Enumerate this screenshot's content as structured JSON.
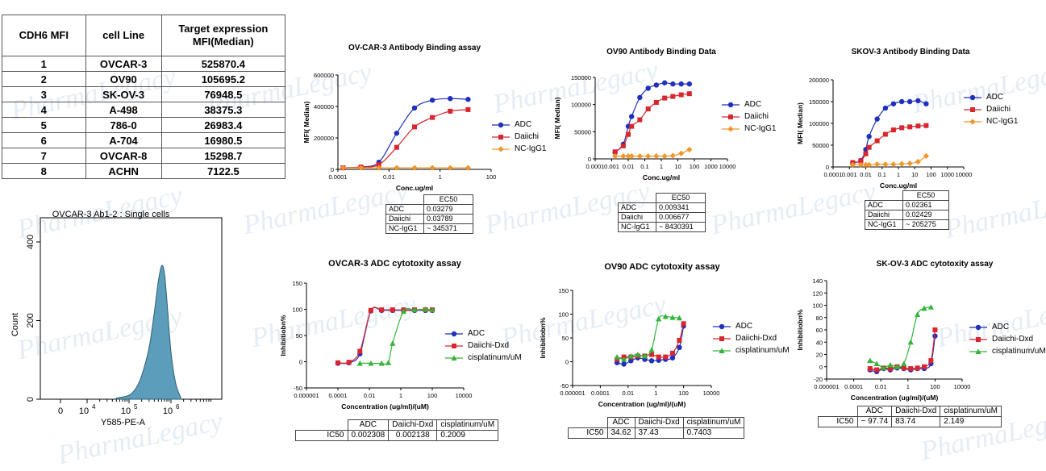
{
  "mfi_table": {
    "headers": [
      "CDH6 MFI",
      "cell Line",
      "Target expression MFI(Median)"
    ],
    "rows": [
      [
        "1",
        "OVCAR-3",
        "525870.4"
      ],
      [
        "2",
        "OV90",
        "105695.2"
      ],
      [
        "3",
        "SK-OV-3",
        "76948.5"
      ],
      [
        "4",
        "A-498",
        "38375.3"
      ],
      [
        "5",
        "786-0",
        "26983.4"
      ],
      [
        "6",
        "A-704",
        "16980.5"
      ],
      [
        "7",
        "OVCAR-8",
        "15298.7"
      ],
      [
        "8",
        "ACHN",
        "7122.5"
      ]
    ]
  },
  "watermark": "PharmaLegacy",
  "colors": {
    "adc": "#1f2fbf",
    "daiichi": "#d7262d",
    "nc": "#f0962a",
    "cisplatin": "#33b53a",
    "hist_fill": "#5b9dbb"
  },
  "ec50_tables": [
    {
      "header": "EC50",
      "rows": [
        [
          "ADC",
          "0.03279"
        ],
        [
          "Daiichi",
          "0.03789"
        ],
        [
          "NC-IgG1",
          "~ 345371"
        ]
      ]
    },
    {
      "header": "EC50",
      "rows": [
        [
          "ADC",
          "0.009341"
        ],
        [
          "Daiichi",
          "0.006677"
        ],
        [
          "NC-IgG1",
          "~ 8430391"
        ]
      ]
    },
    {
      "header": "EC50",
      "rows": [
        [
          "ADC",
          "0.02361"
        ],
        [
          "Daiichi",
          "0.02429"
        ],
        [
          "NC-IgG1",
          "~ 205275"
        ]
      ]
    }
  ],
  "ic50_tables": [
    {
      "headers": [
        "ADC",
        "Daiichi-Dxd",
        "cisplatinum/uM"
      ],
      "label": "IC50",
      "values": [
        "0.002308",
        "0.002138",
        "0.2009"
      ]
    },
    {
      "headers": [
        "ADC",
        "Daiichi-Dxd",
        "cisplatinum/uM"
      ],
      "label": "IC50",
      "values": [
        "34.62",
        "37.43",
        "0.7403"
      ]
    },
    {
      "headers": [
        "ADC",
        "Daiichi-Dxd",
        "cisplatinum/uM"
      ],
      "label": "IC50",
      "values": [
        "~ 97.74",
        "83.74",
        "2.149"
      ]
    }
  ],
  "chart_data": [
    {
      "type": "line",
      "title": "OV-CAR-3 Antibody Binding assay",
      "xlabel": "Conc.ug/ml",
      "ylabel": "MFI( Median)",
      "xscale": "log",
      "xlim": [
        0.0001,
        100
      ],
      "ylim": [
        0,
        600000
      ],
      "xticks": [
        "0.0001",
        "0.01",
        "1",
        "100"
      ],
      "yticks": [
        "0",
        "200000",
        "400000",
        "600000"
      ],
      "legend": "right",
      "series": [
        {
          "name": "ADC",
          "x": [
            0.00016,
            0.0008,
            0.004,
            0.02,
            0.1,
            0.5,
            2.5,
            12.5
          ],
          "y": [
            10000,
            15000,
            45000,
            230000,
            390000,
            440000,
            450000,
            445000
          ]
        },
        {
          "name": "Daiichi",
          "x": [
            0.00016,
            0.0008,
            0.004,
            0.02,
            0.1,
            0.5,
            2.5,
            12.5
          ],
          "y": [
            10000,
            15000,
            30000,
            140000,
            270000,
            330000,
            370000,
            380000
          ]
        },
        {
          "name": "NC-IgG1",
          "x": [
            0.00016,
            0.0008,
            0.004,
            0.02,
            0.1,
            0.5,
            2.5,
            12.5
          ],
          "y": [
            10000,
            10000,
            10000,
            10000,
            10000,
            10000,
            10000,
            10000
          ]
        }
      ]
    },
    {
      "type": "line",
      "title": "OV90 Antibody Binding Data",
      "xlabel": "Conc.ug/ml",
      "ylabel": "MFI( Median)",
      "xscale": "log",
      "xlim": [
        0.0001,
        10000
      ],
      "ylim": [
        0,
        150000
      ],
      "xticks": [
        "0.0001",
        "0.001",
        "0.01",
        "0.1",
        "1",
        "10",
        "100",
        "1000",
        "10000"
      ],
      "yticks": [
        "0",
        "50000",
        "100000",
        "150000"
      ],
      "legend": "right",
      "series": [
        {
          "name": "ADC",
          "x": [
            0.0016,
            0.005,
            0.01,
            0.016,
            0.05,
            0.16,
            0.5,
            1.6,
            5,
            16,
            50
          ],
          "y": [
            12000,
            27000,
            60000,
            78000,
            113000,
            130000,
            136000,
            140000,
            138000,
            138000,
            138000
          ]
        },
        {
          "name": "Daiichi",
          "x": [
            0.0016,
            0.005,
            0.01,
            0.016,
            0.05,
            0.16,
            0.5,
            1.6,
            5,
            16,
            50
          ],
          "y": [
            13000,
            24000,
            45000,
            60000,
            72000,
            92000,
            104000,
            112000,
            115000,
            118000,
            120000
          ]
        },
        {
          "name": "NC-IgG1",
          "x": [
            0.0016,
            0.005,
            0.01,
            0.016,
            0.05,
            0.16,
            0.5,
            1.6,
            5,
            16,
            50
          ],
          "y": [
            5000,
            5000,
            5000,
            5000,
            5000,
            5000,
            5000,
            5000,
            6000,
            10000,
            17000
          ]
        }
      ]
    },
    {
      "type": "line",
      "title": "SKOV-3 Antibody Binding Data",
      "xlabel": "Conc.ug/ml",
      "ylabel": "MFI( Median)",
      "xscale": "log",
      "xlim": [
        0.0001,
        10000
      ],
      "ylim": [
        0,
        200000
      ],
      "xticks": [
        "0.0001",
        "0.001",
        "0.01",
        "0.1",
        "1",
        "10",
        "100",
        "1000",
        "10000"
      ],
      "yticks": [
        "0",
        "50000",
        "100000",
        "150000",
        "200000"
      ],
      "legend": "right",
      "series": [
        {
          "name": "ADC",
          "x": [
            0.0016,
            0.005,
            0.01,
            0.016,
            0.05,
            0.16,
            0.5,
            1.6,
            5,
            16,
            50
          ],
          "y": [
            10000,
            15000,
            40000,
            70000,
            110000,
            135000,
            145000,
            150000,
            150000,
            152000,
            145000
          ]
        },
        {
          "name": "Daiichi",
          "x": [
            0.0016,
            0.005,
            0.01,
            0.016,
            0.05,
            0.16,
            0.5,
            1.6,
            5,
            16,
            50
          ],
          "y": [
            10000,
            14000,
            30000,
            45000,
            60000,
            75000,
            85000,
            90000,
            92000,
            94000,
            95000
          ]
        },
        {
          "name": "NC-IgG1",
          "x": [
            0.0016,
            0.005,
            0.01,
            0.016,
            0.05,
            0.16,
            0.5,
            1.6,
            5,
            16,
            50
          ],
          "y": [
            5000,
            5000,
            5000,
            5000,
            6000,
            6000,
            6000,
            7000,
            8000,
            12000,
            25000
          ]
        }
      ]
    },
    {
      "type": "area",
      "title": "OVCAR-3 Ab1-2 : Single cells",
      "xlabel": "Y585-PE-A",
      "ylabel": "Count",
      "xscale": "biexponential",
      "xticks": [
        "0",
        "10^4",
        "10^5",
        "10^6"
      ],
      "yticks": [
        "0",
        "200",
        "400"
      ],
      "ylim": [
        0,
        400
      ],
      "series": [
        {
          "name": "",
          "x": [
            50000,
            100000,
            150000,
            200000,
            300000,
            400000,
            500000,
            600000,
            700000,
            800000,
            1000000,
            1300000,
            1700000
          ],
          "y": [
            3,
            10,
            30,
            60,
            130,
            220,
            300,
            340,
            320,
            250,
            120,
            40,
            5
          ]
        }
      ]
    },
    {
      "type": "line",
      "title": "OVCAR-3 ADC cytotoxity assay",
      "xlabel": "Concentration (ug/ml)/(uM)",
      "ylabel": "Inhibitiobn%",
      "xscale": "log",
      "xlim": [
        1e-06,
        10000
      ],
      "ylim": [
        -50,
        150
      ],
      "xticks": [
        "0.000001",
        "0.0001",
        "0.01",
        "1",
        "100",
        "10000"
      ],
      "yticks": [
        "-50",
        "0",
        "50",
        "100",
        "150"
      ],
      "legend": "right",
      "series": [
        {
          "name": "ADC",
          "x": [
            0.0001,
            0.0005,
            0.0025,
            0.0125,
            0.06,
            0.3,
            1.5,
            7.5,
            37,
            100
          ],
          "y": [
            -3,
            -2,
            15,
            97,
            98,
            98,
            98,
            98,
            98,
            98
          ]
        },
        {
          "name": "Daiichi-Dxd",
          "x": [
            0.0001,
            0.0005,
            0.0025,
            0.0125,
            0.06,
            0.3,
            1.5,
            7.5,
            37,
            100
          ],
          "y": [
            -2,
            -1,
            20,
            98,
            99,
            99,
            99,
            99,
            99,
            99
          ]
        },
        {
          "name": "cisplatinum/uM",
          "x": [
            0.0025,
            0.0125,
            0.06,
            0.16,
            0.3,
            1.5,
            7.5,
            37,
            100
          ],
          "y": [
            -3,
            -3,
            -3,
            -2,
            35,
            96,
            99,
            100,
            99
          ]
        }
      ]
    },
    {
      "type": "line",
      "title": "OV90 ADC cytotoxity assay",
      "xlabel": "Concentration (ug/ml)/(uM)",
      "ylabel": "Inhibitiobn%",
      "xscale": "log",
      "xlim": [
        1e-06,
        10000
      ],
      "ylim": [
        -50,
        150
      ],
      "xticks": [
        "0.000001",
        "0.0001",
        "0.01",
        "1",
        "100",
        "10000"
      ],
      "yticks": [
        "-50",
        "0",
        "50",
        "100",
        "150"
      ],
      "legend": "right",
      "series": [
        {
          "name": "ADC",
          "x": [
            0.0016,
            0.005,
            0.016,
            0.05,
            0.16,
            0.5,
            1.6,
            5,
            16,
            50,
            100
          ],
          "y": [
            -2,
            -5,
            2,
            8,
            5,
            2,
            3,
            5,
            8,
            30,
            75
          ]
        },
        {
          "name": "Daiichi-Dxd",
          "x": [
            0.0016,
            0.005,
            0.016,
            0.05,
            0.16,
            0.5,
            1.6,
            5,
            16,
            50,
            100
          ],
          "y": [
            5,
            10,
            10,
            12,
            12,
            15,
            10,
            10,
            18,
            45,
            80
          ]
        },
        {
          "name": "cisplatinum/uM",
          "x": [
            0.0016,
            0.005,
            0.016,
            0.05,
            0.16,
            0.5,
            1.6,
            5,
            16,
            50
          ],
          "y": [
            10,
            5,
            12,
            15,
            12,
            25,
            90,
            95,
            93,
            92
          ]
        }
      ]
    },
    {
      "type": "line",
      "title": "SK-OV-3 ADC cytotoxity assay",
      "xlabel": "Concentration (ug/ml)/(uM)",
      "ylabel": "Inhibitiobn%",
      "xscale": "log",
      "xlim": [
        1e-06,
        10000
      ],
      "ylim": [
        -20,
        140
      ],
      "xticks": [
        "0.000001",
        "0.0001",
        "0.01",
        "1",
        "100",
        "10000"
      ],
      "yticks": [
        "-20",
        "0",
        "20",
        "40",
        "60",
        "80",
        "100",
        "120",
        "140"
      ],
      "legend": "right",
      "series": [
        {
          "name": "ADC",
          "x": [
            0.0016,
            0.005,
            0.016,
            0.05,
            0.16,
            0.5,
            1.6,
            5,
            16,
            50,
            100
          ],
          "y": [
            -5,
            -8,
            -3,
            -5,
            -2,
            -3,
            -5,
            -3,
            -3,
            5,
            50
          ]
        },
        {
          "name": "Daiichi-Dxd",
          "x": [
            0.0016,
            0.005,
            0.016,
            0.05,
            0.16,
            0.5,
            1.6,
            5,
            16,
            50,
            100
          ],
          "y": [
            -3,
            -5,
            -2,
            -3,
            0,
            -2,
            -3,
            -2,
            0,
            10,
            60
          ]
        },
        {
          "name": "cisplatinum/uM",
          "x": [
            0.0016,
            0.005,
            0.016,
            0.05,
            0.16,
            0.5,
            1.6,
            5,
            16,
            50
          ],
          "y": [
            10,
            5,
            -2,
            3,
            0,
            5,
            40,
            85,
            95,
            97
          ]
        }
      ]
    }
  ]
}
